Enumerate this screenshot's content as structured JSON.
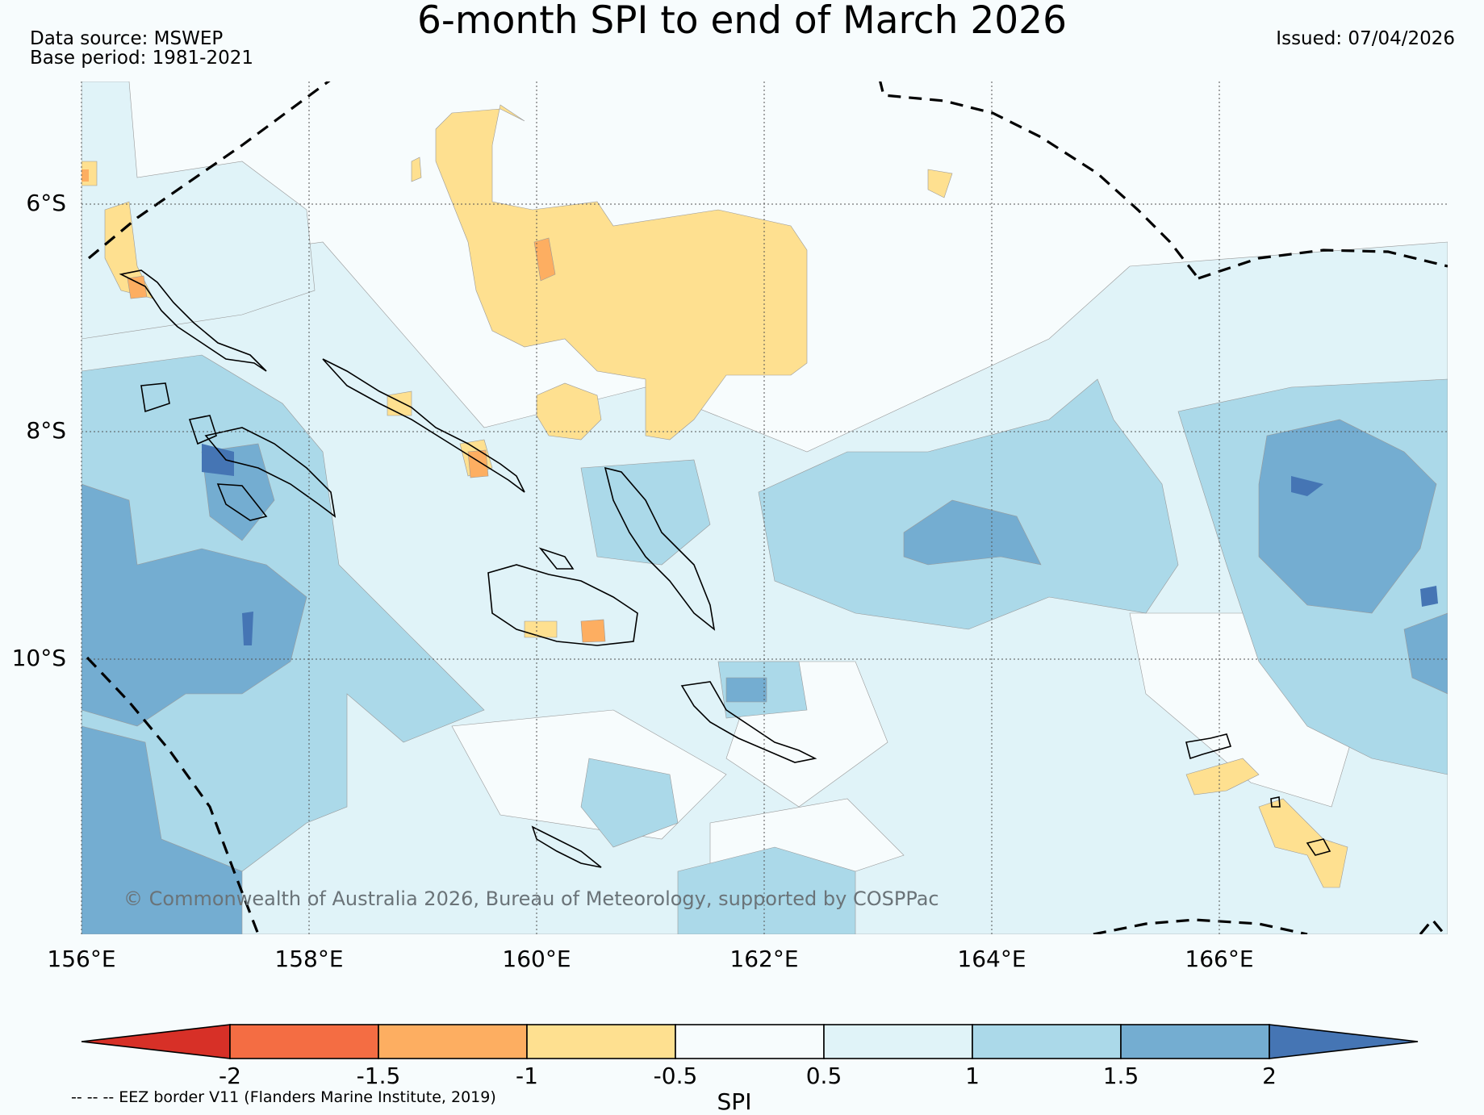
{
  "title": "6-month SPI to end of March 2026",
  "data_source": "Data source: MSWEP",
  "base_period": "Base period: 1981-2021",
  "issued": "Issued: 07/04/2026",
  "map": {
    "lon_ticks": [
      "156°E",
      "158°E",
      "160°E",
      "162°E",
      "164°E",
      "166°E"
    ],
    "lat_ticks": [
      "6°S",
      "8°S",
      "10°S"
    ],
    "copyright": "© Commonwealth of Australia 2026, Bureau of Meteorology, supported by COSPPac"
  },
  "colorbar": {
    "title": "SPI",
    "labels": [
      "-2",
      "-1.5",
      "-1",
      "-0.5",
      "0.5",
      "1",
      "1.5",
      "2"
    ],
    "colors": [
      "#d73027",
      "#f46d43",
      "#fdae61",
      "#fee090",
      "#f7fcfd",
      "#e0f3f8",
      "#abd9e9",
      "#74add1",
      "#4575b4"
    ]
  },
  "legend": {
    "eez": "-- -- -- EEZ border V11 (Flanders Marine Institute, 2019)"
  }
}
